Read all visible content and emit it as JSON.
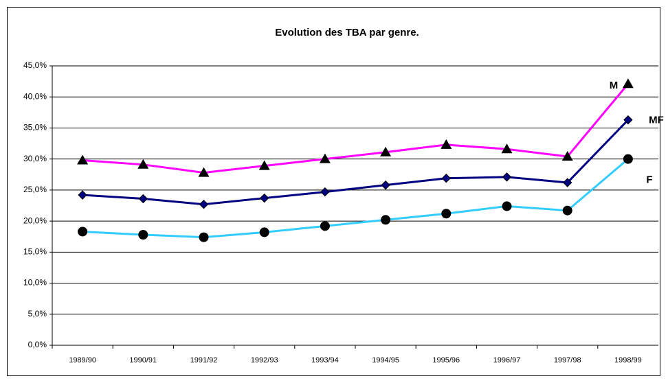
{
  "chart_data": {
    "type": "line",
    "title": "Evolution des TBA par genre.",
    "categories": [
      "1989/90",
      "1990/91",
      "1991/92",
      "1992/93",
      "1993/94",
      "1994/95",
      "1995/96",
      "1996/97",
      "1997/98",
      "1998/99"
    ],
    "series": [
      {
        "name": "M",
        "color": "#ff00ff",
        "marker": "triangle",
        "marker_color": "#000000",
        "values": [
          29.8,
          29.1,
          27.8,
          28.9,
          30.0,
          31.1,
          32.3,
          31.6,
          30.4,
          42.1
        ]
      },
      {
        "name": "MF",
        "color": "#000080",
        "marker": "diamond",
        "marker_color": "#000080",
        "values": [
          24.2,
          23.6,
          22.7,
          23.7,
          24.7,
          25.8,
          26.9,
          27.1,
          26.2,
          36.3
        ]
      },
      {
        "name": "F",
        "color": "#33ccff",
        "marker": "circle",
        "marker_color": "#000000",
        "values": [
          18.3,
          17.8,
          17.4,
          18.2,
          19.2,
          20.2,
          21.2,
          22.4,
          21.7,
          30.0
        ]
      }
    ],
    "ylim": [
      0,
      45
    ],
    "yticks": [
      {
        "value": 0,
        "label": "0,0%"
      },
      {
        "value": 5,
        "label": "5,0%"
      },
      {
        "value": 10,
        "label": "10,0%"
      },
      {
        "value": 15,
        "label": "15,0%"
      },
      {
        "value": 20,
        "label": "20,0%"
      },
      {
        "value": 25,
        "label": "25,0%"
      },
      {
        "value": 30,
        "label": "30,0%"
      },
      {
        "value": 35,
        "label": "35,0%"
      },
      {
        "value": 40,
        "label": "40,0%"
      },
      {
        "value": 45,
        "label": "45,0%"
      }
    ],
    "grid": true
  }
}
